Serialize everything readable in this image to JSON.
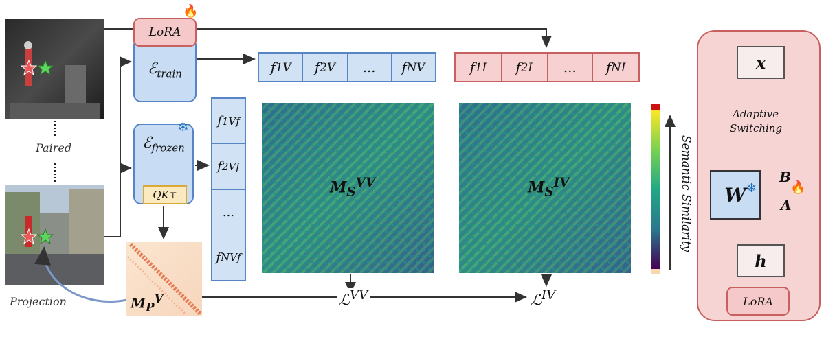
{
  "labels": {
    "lora_top": "LoRA",
    "paired": "Paired",
    "projection": "Projection",
    "enc_train_main": "ℰ",
    "enc_train_sub": "train",
    "enc_frozen_main": "ℰ",
    "enc_frozen_sub": "frozen",
    "qk": "QK",
    "qk_sup": "⊤",
    "semantic_similarity": "Semantic Similarity"
  },
  "features_visible_row": [
    {
      "base": "f",
      "sub": "1",
      "sup": "V"
    },
    {
      "base": "f",
      "sub": "2",
      "sup": "V"
    },
    {
      "base": "...",
      "sub": "",
      "sup": ""
    },
    {
      "base": "f",
      "sub": "N",
      "sup": "V"
    }
  ],
  "features_infrared_row": [
    {
      "base": "f",
      "sub": "1",
      "sup": "I"
    },
    {
      "base": "f",
      "sub": "2",
      "sup": "I"
    },
    {
      "base": "...",
      "sub": "",
      "sup": ""
    },
    {
      "base": "f",
      "sub": "N",
      "sup": "I"
    }
  ],
  "features_frozen_col": [
    {
      "base": "f",
      "sub": "1",
      "sup": "Vf"
    },
    {
      "base": "f",
      "sub": "2",
      "sup": "Vf"
    },
    {
      "base": "...",
      "sub": "",
      "sup": ""
    },
    {
      "base": "f",
      "sub": "N",
      "sup": "Vf"
    }
  ],
  "matrices": {
    "vv": {
      "base": "M",
      "sub": "S",
      "sup": "VV"
    },
    "iv": {
      "base": "M",
      "sub": "S",
      "sup": "IV"
    },
    "proj": {
      "base": "M",
      "sub": "P",
      "sup": "V"
    }
  },
  "losses": {
    "vv": {
      "base": "ℒ",
      "sup": "VV"
    },
    "iv": {
      "base": "ℒ",
      "sup": "IV"
    }
  },
  "side_panel": {
    "x": "x",
    "adaptive": "Adaptive",
    "switching": "Switching",
    "w": "W",
    "b": "B",
    "a": "A",
    "h": "h",
    "lora": "LoRA"
  },
  "colors": {
    "visible": "#5784c4",
    "infrared": "#c96060",
    "frozen_accent": "#d8aa3a"
  }
}
